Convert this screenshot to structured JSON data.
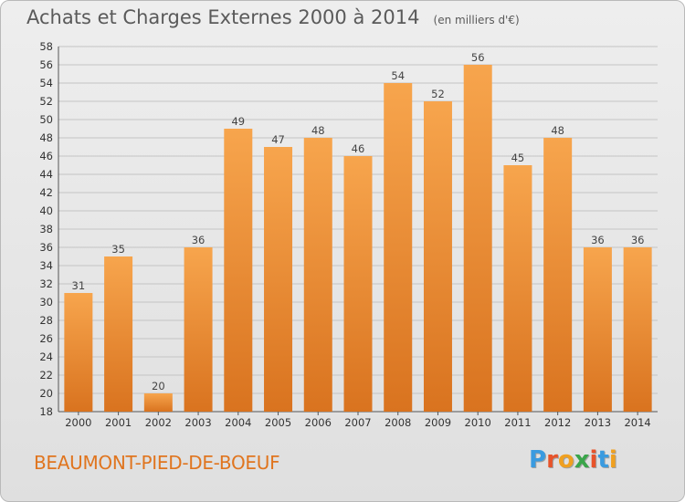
{
  "colors": {
    "bar_light": "#f7a54d",
    "bar_dark": "#d9731f",
    "place": "#e0751f",
    "logo_letters": [
      "#3a9be0",
      "#e8532a",
      "#f0a020",
      "#3aa54a",
      "#e8532a",
      "#3a9be0",
      "#f0a020"
    ]
  },
  "chart_data": {
    "type": "bar",
    "title": "Achats et Charges Externes 2000 à 2014",
    "subtitle": "(en milliers d'€)",
    "categories": [
      "2000",
      "2001",
      "2002",
      "2003",
      "2004",
      "2005",
      "2006",
      "2007",
      "2008",
      "2009",
      "2010",
      "2011",
      "2012",
      "2013",
      "2014"
    ],
    "values": [
      31,
      35,
      20,
      36,
      49,
      47,
      48,
      46,
      54,
      52,
      56,
      45,
      48,
      36,
      36
    ],
    "ylim": [
      18,
      58
    ],
    "yticks": [
      18,
      20,
      22,
      24,
      26,
      28,
      30,
      32,
      34,
      36,
      38,
      40,
      42,
      44,
      46,
      48,
      50,
      52,
      54,
      56,
      58
    ],
    "grid": true,
    "xlabel": "",
    "ylabel": ""
  },
  "footer": {
    "place": "BEAUMONT-PIED-DE-BOEUF",
    "logo": "Proxiti"
  }
}
